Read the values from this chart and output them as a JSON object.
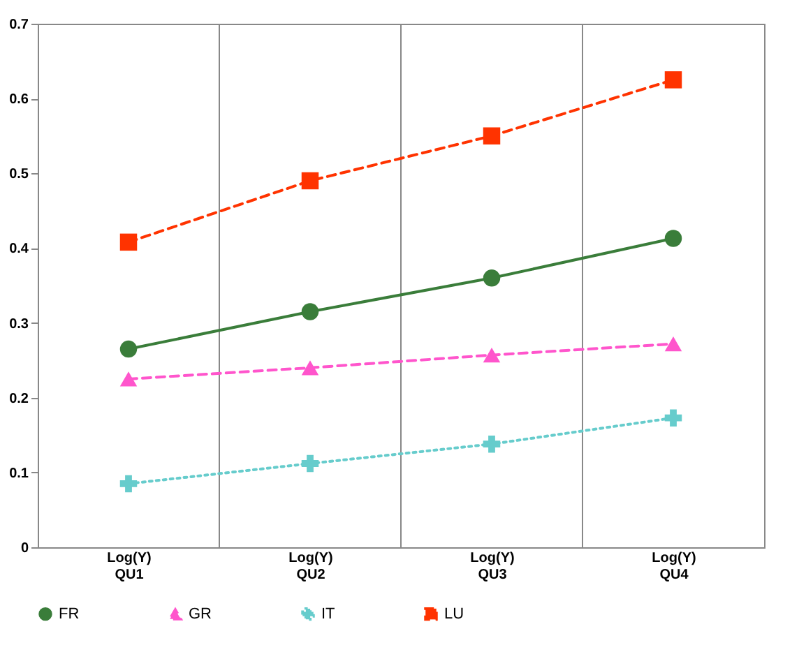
{
  "chart_data": {
    "type": "line",
    "categories": [
      "Log(Y) QU1",
      "Log(Y) QU2",
      "Log(Y) QU3",
      "Log(Y) QU4"
    ],
    "series": [
      {
        "name": "FR",
        "color": "#3a7d3a",
        "marker": "circle",
        "line_style": "solid",
        "values": [
          0.265,
          0.315,
          0.36,
          0.413
        ]
      },
      {
        "name": "GR",
        "color": "#ff55cc",
        "marker": "triangle",
        "line_style": "dashed",
        "values": [
          0.225,
          0.24,
          0.257,
          0.272
        ]
      },
      {
        "name": "IT",
        "color": "#66cccc",
        "marker": "cross",
        "line_style": "dotted",
        "values": [
          0.085,
          0.112,
          0.138,
          0.173
        ]
      },
      {
        "name": "LU",
        "color": "#ff3300",
        "marker": "square",
        "line_style": "dashed",
        "values": [
          0.408,
          0.49,
          0.55,
          0.625
        ]
      }
    ],
    "ylim": [
      0,
      0.7
    ],
    "yticks": [
      0,
      0.1,
      0.2,
      0.3,
      0.4,
      0.5,
      0.6,
      0.7
    ],
    "grid": "x",
    "legend": "bottom"
  }
}
